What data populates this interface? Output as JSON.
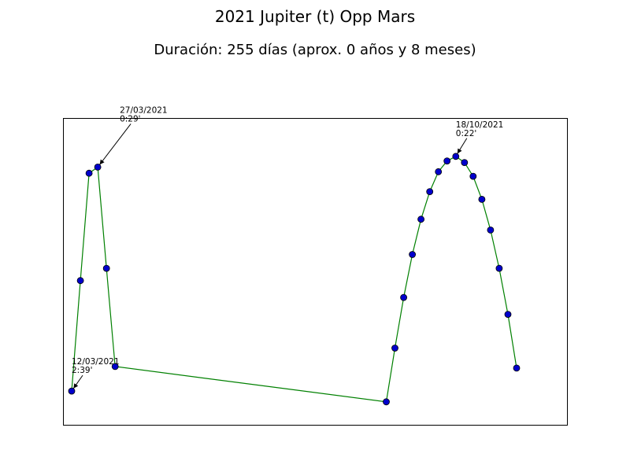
{
  "chart_data": {
    "type": "line",
    "title": "2021 Jupiter (t) Opp Mars",
    "subtitle": "Duración: 255 días (aprox. 0 años y 8 meses)",
    "xlabel": "",
    "ylabel": "",
    "x_axis_visible": false,
    "y_axis_visible": false,
    "grid": false,
    "legend": "none",
    "colors": {
      "line": "#008000",
      "marker_fill": "#0000cc",
      "marker_edge": "#000000",
      "frame": "#000000"
    },
    "xlim": [
      0,
      58
    ],
    "ylim": [
      0,
      1
    ],
    "series": [
      {
        "points": [
          {
            "x": 1.0,
            "y": 0.11
          },
          {
            "x": 2.0,
            "y": 0.47
          },
          {
            "x": 3.0,
            "y": 0.82
          },
          {
            "x": 4.0,
            "y": 0.84
          },
          {
            "x": 5.0,
            "y": 0.51
          },
          {
            "x": 6.0,
            "y": 0.19
          },
          {
            "x": 37.2,
            "y": 0.075
          },
          {
            "x": 38.2,
            "y": 0.25
          },
          {
            "x": 39.2,
            "y": 0.415
          },
          {
            "x": 40.2,
            "y": 0.555
          },
          {
            "x": 41.2,
            "y": 0.67
          },
          {
            "x": 42.2,
            "y": 0.76
          },
          {
            "x": 43.2,
            "y": 0.825
          },
          {
            "x": 44.2,
            "y": 0.86
          },
          {
            "x": 45.2,
            "y": 0.875
          },
          {
            "x": 46.2,
            "y": 0.855
          },
          {
            "x": 47.2,
            "y": 0.81
          },
          {
            "x": 48.2,
            "y": 0.735
          },
          {
            "x": 49.2,
            "y": 0.635
          },
          {
            "x": 50.2,
            "y": 0.51
          },
          {
            "x": 51.2,
            "y": 0.36
          },
          {
            "x": 52.2,
            "y": 0.185
          }
        ]
      }
    ],
    "annotations": [
      {
        "date": "12/03/2021",
        "value": "2:39'",
        "point_index": 0
      },
      {
        "date": "27/03/2021",
        "value": "0:29'",
        "point_index": 3
      },
      {
        "date": "18/10/2021",
        "value": "0:22'",
        "point_index": 14
      }
    ]
  }
}
